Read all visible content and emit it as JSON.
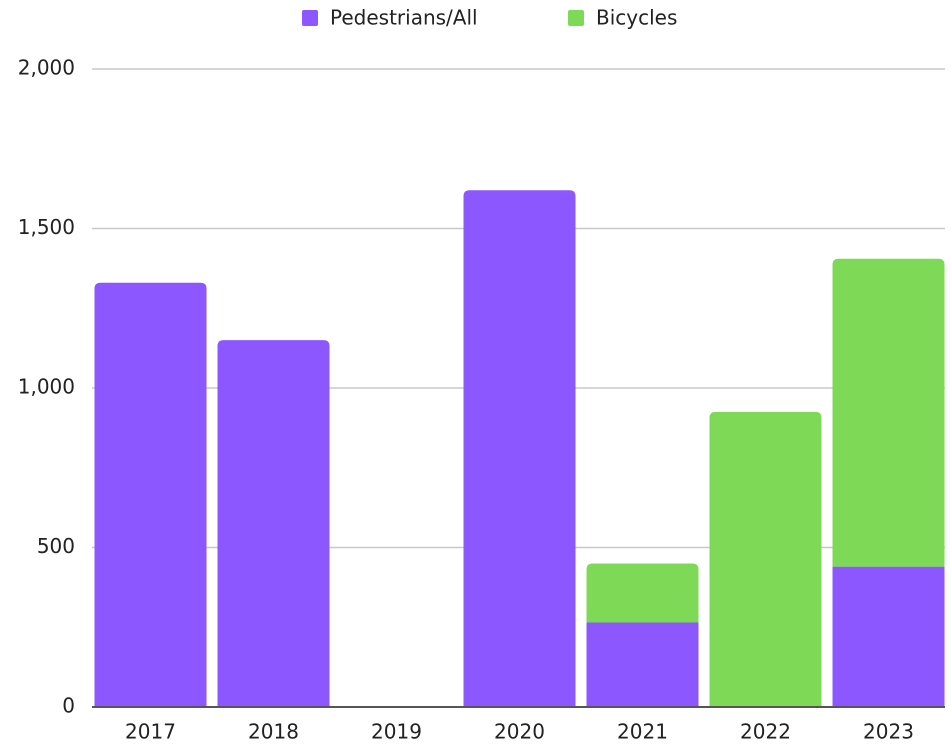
{
  "chart_data": {
    "type": "stacked_bar",
    "categories": [
      "2017",
      "2018",
      "2019",
      "2020",
      "2021",
      "2022",
      "2023"
    ],
    "series": [
      {
        "name": "Pedestrians/All",
        "color": "#8c57ff",
        "values": [
          1330,
          1150,
          0,
          1620,
          265,
          0,
          440
        ]
      },
      {
        "name": "Bicycles",
        "color": "#7ed957",
        "values": [
          0,
          0,
          0,
          0,
          185,
          925,
          965
        ]
      }
    ],
    "ylim": [
      0,
      2000
    ],
    "yticks": [
      0,
      500,
      {
        "value": 1000,
        "label": "1,000"
      },
      {
        "value": 1500,
        "label": "1,500"
      },
      {
        "value": 2000,
        "label": "2,000"
      }
    ],
    "grid": true,
    "legend": "top"
  }
}
